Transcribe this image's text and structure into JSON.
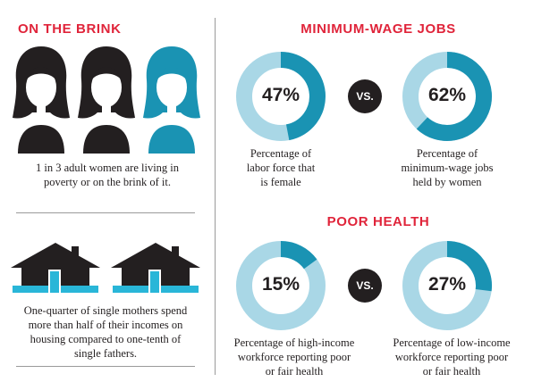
{
  "colors": {
    "accent_red": "#e0243a",
    "teal": "#1a93b3",
    "light_blue": "#a9d7e6",
    "dark": "#231f20",
    "water_blue": "#29b6d8"
  },
  "left": {
    "brink_heading": "ON THE BRINK",
    "women_icons": [
      "woman-icon",
      "woman-icon",
      "woman-icon-highlighted"
    ],
    "brink_caption": [
      "1 in 3 adult women are living in",
      "poverty or on the brink of it."
    ],
    "house_icons": [
      "house-icon",
      "house-icon"
    ],
    "housing_caption": [
      "One-quarter of single mothers spend",
      "more than half of their incomes on",
      "housing compared to one-tenth of",
      "single fathers."
    ]
  },
  "right": {
    "wage_heading": "MINIMUM-WAGE JOBS",
    "health_heading": "POOR HEALTH",
    "vs_label": "VS.",
    "wage_donuts": [
      {
        "value": 47,
        "label": "47%",
        "caption": [
          "Percentage of",
          "labor force that",
          "is female"
        ]
      },
      {
        "value": 62,
        "label": "62%",
        "caption": [
          "Percentage of",
          "minimum-wage jobs",
          "held by women"
        ]
      }
    ],
    "health_donuts": [
      {
        "value": 15,
        "label": "15%",
        "caption": [
          "Percentage of high-income",
          "workforce reporting poor",
          "or fair health"
        ]
      },
      {
        "value": 27,
        "label": "27%",
        "caption": [
          "Percentage of low-income",
          "workforce reporting poor",
          "or fair health"
        ]
      }
    ]
  }
}
